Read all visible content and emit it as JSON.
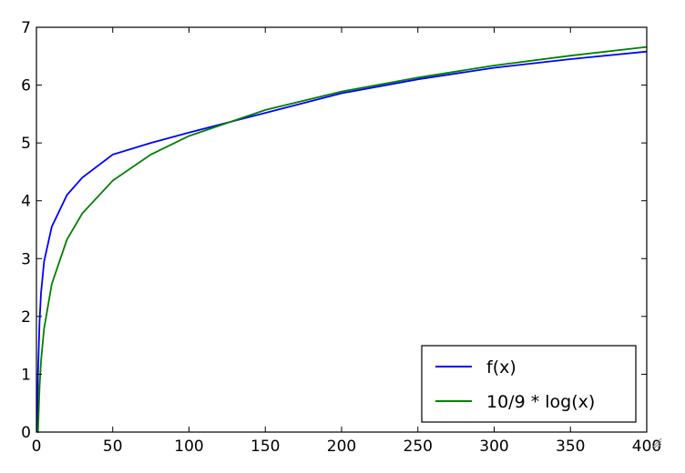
{
  "chart_data": {
    "type": "line",
    "title": "",
    "xlabel": "",
    "ylabel": "",
    "xlim": [
      0,
      400
    ],
    "ylim": [
      0,
      7
    ],
    "xticks": [
      0,
      50,
      100,
      150,
      200,
      250,
      300,
      350,
      400
    ],
    "yticks": [
      0,
      1,
      2,
      3,
      4,
      5,
      6,
      7
    ],
    "grid": false,
    "legend_position": "lower-right",
    "x": [
      1,
      2,
      3,
      5,
      10,
      20,
      30,
      50,
      75,
      100,
      150,
      200,
      250,
      300,
      350,
      400
    ],
    "series": [
      {
        "name": "f(x)",
        "color": "#0000ff",
        "values": [
          1.0,
          1.9,
          2.4,
          2.95,
          3.55,
          4.1,
          4.4,
          4.8,
          5.0,
          5.18,
          5.52,
          5.86,
          6.1,
          6.3,
          6.45,
          6.58
        ]
      },
      {
        "name": "10/9 * log(x)",
        "color": "#008000",
        "values": [
          0.0,
          0.77,
          1.22,
          1.79,
          2.56,
          3.33,
          3.78,
          4.35,
          4.8,
          5.12,
          5.57,
          5.89,
          6.13,
          6.34,
          6.51,
          6.66
        ]
      }
    ]
  }
}
